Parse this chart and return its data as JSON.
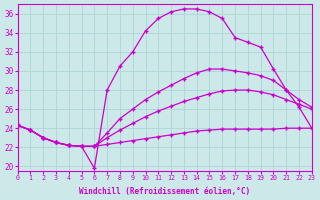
{
  "xlabel": "Windchill (Refroidissement éolien,°C)",
  "xlim": [
    0,
    23
  ],
  "ylim": [
    19.5,
    37
  ],
  "yticks": [
    20,
    22,
    24,
    26,
    28,
    30,
    32,
    34,
    36
  ],
  "xticks": [
    0,
    1,
    2,
    3,
    4,
    5,
    6,
    7,
    8,
    9,
    10,
    11,
    12,
    13,
    14,
    15,
    16,
    17,
    18,
    19,
    20,
    21,
    22,
    23
  ],
  "bg_color": "#cce8e8",
  "grid_color": "#b0d8d8",
  "line_color": "#cc00cc",
  "lines": [
    {
      "x": [
        0,
        1,
        2,
        3,
        4,
        5,
        6,
        7,
        8,
        9,
        10,
        11,
        12,
        13,
        14,
        15,
        16,
        17,
        18,
        19,
        20,
        21,
        22,
        23
      ],
      "y": [
        24.3,
        23.8,
        23.0,
        22.5,
        22.2,
        22.1,
        22.1,
        22.3,
        22.5,
        22.7,
        22.9,
        23.1,
        23.3,
        23.5,
        23.7,
        23.8,
        23.9,
        23.9,
        23.9,
        23.9,
        23.9,
        24.0,
        24.0,
        24.0
      ]
    },
    {
      "x": [
        0,
        1,
        2,
        3,
        4,
        5,
        6,
        7,
        8,
        9,
        10,
        11,
        12,
        13,
        14,
        15,
        16,
        17,
        18,
        19,
        20,
        21,
        22,
        23
      ],
      "y": [
        24.3,
        23.8,
        23.0,
        22.5,
        22.2,
        22.1,
        22.1,
        23.0,
        23.8,
        24.5,
        25.2,
        25.8,
        26.3,
        26.8,
        27.2,
        27.6,
        27.9,
        28.0,
        28.0,
        27.8,
        27.5,
        27.0,
        26.5,
        26.0
      ]
    },
    {
      "x": [
        0,
        1,
        2,
        3,
        4,
        5,
        6,
        7,
        8,
        9,
        10,
        11,
        12,
        13,
        14,
        15,
        16,
        17,
        18,
        19,
        20,
        21,
        22,
        23
      ],
      "y": [
        24.3,
        23.8,
        23.0,
        22.5,
        22.2,
        22.1,
        22.1,
        23.5,
        25.0,
        26.0,
        27.0,
        27.8,
        28.5,
        29.2,
        29.8,
        30.2,
        30.2,
        30.0,
        29.8,
        29.5,
        29.0,
        28.0,
        27.0,
        26.2
      ]
    },
    {
      "x": [
        0,
        1,
        2,
        3,
        4,
        5,
        6,
        7,
        8,
        9,
        10,
        11,
        12,
        13,
        14,
        15,
        16,
        17,
        18,
        19,
        20,
        21,
        22,
        23
      ],
      "y": [
        24.3,
        23.8,
        23.0,
        22.5,
        22.2,
        22.1,
        19.8,
        28.0,
        30.5,
        32.0,
        34.2,
        35.5,
        36.2,
        36.5,
        36.5,
        36.2,
        35.5,
        33.5,
        33.0,
        32.5,
        30.2,
        28.0,
        26.2,
        24.0
      ]
    }
  ]
}
